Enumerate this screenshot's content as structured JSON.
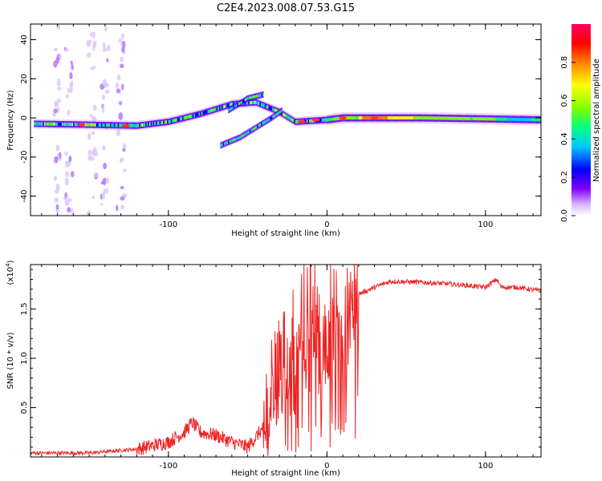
{
  "figure": {
    "title": "C2E4.2023.008.07.53.G15"
  },
  "chart_data": [
    {
      "type": "heatmap",
      "xlabel": "Height of straight line (km)",
      "ylabel": "Frequency (Hz)",
      "xlim": [
        -187,
        135
      ],
      "ylim": [
        -50,
        48
      ],
      "x_ticks": [
        -100,
        0,
        100
      ],
      "x_tick_labels": [
        "-100",
        "0",
        "100"
      ],
      "y_ticks": [
        -40,
        -20,
        0,
        20,
        40
      ],
      "y_tick_labels": [
        "-40",
        "-20",
        "0",
        "20",
        "40"
      ],
      "colorbar": {
        "label": "Normalized spectral amplitude",
        "range": [
          0,
          1
        ],
        "ticks": [
          0.0,
          0.2,
          0.4,
          0.6,
          0.8
        ],
        "tick_labels": [
          "0.0",
          "0.2",
          "0.4",
          "0.6",
          "0.8"
        ],
        "colormap": [
          "#ffffff",
          "#d9b3ff",
          "#8000ff",
          "#0000ff",
          "#00c8ff",
          "#00ff80",
          "#80ff00",
          "#ffff00",
          "#ff8000",
          "#ff0000",
          "#ff0066"
        ]
      },
      "traces": [
        {
          "name_hidden": true,
          "points": [
            [
              -185,
              -3
            ],
            [
              -150,
              -3.5
            ],
            [
              -120,
              -4
            ],
            [
              -100,
              -2
            ],
            [
              -80,
              2
            ],
            [
              -60,
              7
            ],
            [
              -45,
              8
            ],
            [
              -30,
              3
            ],
            [
              -20,
              -2
            ],
            [
              0,
              -1
            ],
            [
              10,
              0
            ],
            [
              30,
              0
            ],
            [
              60,
              0
            ],
            [
              100,
              -0.5
            ],
            [
              135,
              -1
            ]
          ]
        },
        {
          "name_hidden": true,
          "points": [
            [
              -62,
              4
            ],
            [
              -50,
              10
            ],
            [
              -40,
              12
            ]
          ]
        },
        {
          "name_hidden": true,
          "points": [
            [
              -67,
              -14
            ],
            [
              -55,
              -10
            ],
            [
              -45,
              -5
            ],
            [
              -35,
              0
            ],
            [
              -28,
              4
            ]
          ]
        }
      ]
    },
    {
      "type": "line",
      "xlabel": "Height of straight line (km)",
      "ylabel": "SNR (10 * v/v)",
      "y_scale_label": "(x10",
      "y_scale_exp": "4",
      "y_scale_close": ")",
      "xlim": [
        -187,
        135
      ],
      "ylim": [
        0,
        1.95
      ],
      "x_ticks": [
        -100,
        0,
        100
      ],
      "x_tick_labels": [
        "-100",
        "0",
        "100"
      ],
      "y_ticks": [
        0.5,
        1.0,
        1.5
      ],
      "y_tick_labels": [
        "0.5",
        "1.0",
        "1.5"
      ],
      "line_color": "#ee2222",
      "series": [
        {
          "x": [
            -187,
            -150,
            -120,
            -100,
            -90,
            -85,
            -80,
            -70,
            -60,
            -50,
            -40,
            -35,
            -30,
            -25,
            -20,
            -15,
            -10,
            -5,
            0,
            5,
            10,
            15,
            20,
            30,
            40,
            60,
            80,
            100,
            107,
            110,
            120,
            135
          ],
          "y": [
            0.04,
            0.04,
            0.08,
            0.15,
            0.25,
            0.35,
            0.25,
            0.22,
            0.15,
            0.1,
            0.3,
            0.6,
            0.9,
            1.1,
            1.3,
            1.45,
            1.5,
            1.45,
            1.35,
            1.5,
            1.3,
            1.6,
            1.65,
            1.72,
            1.78,
            1.77,
            1.75,
            1.72,
            1.8,
            1.72,
            1.72,
            1.68
          ]
        }
      ]
    }
  ]
}
